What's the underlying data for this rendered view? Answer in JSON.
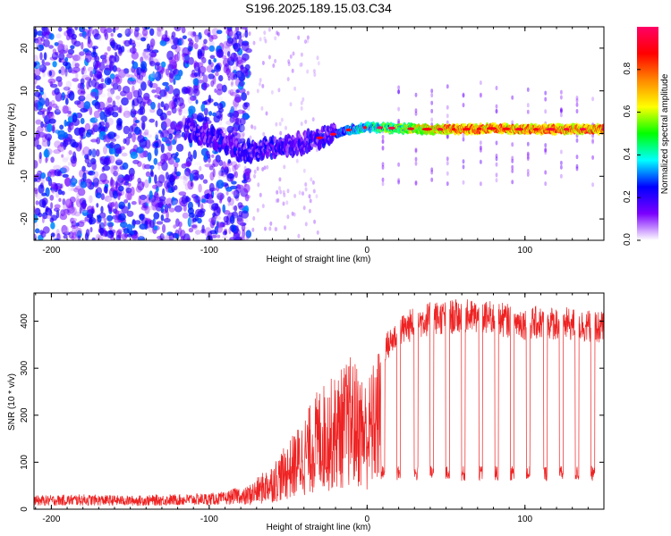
{
  "title": "S196.2025.189.15.03.C34",
  "chart_data": [
    {
      "type": "heatmap",
      "xlabel": "Height of straight line (km)",
      "ylabel": "Frequency (Hz)",
      "xlim": [
        -211,
        150
      ],
      "ylim": [
        -25,
        25
      ],
      "xticks": [
        -200,
        -100,
        0,
        100
      ],
      "yticks": [
        -20,
        -10,
        0,
        10,
        20
      ],
      "colorbar": {
        "label": "Normalized spectral amplitude",
        "range": [
          0,
          1
        ],
        "ticks": [
          "0.0",
          "0.2",
          "0.4",
          "0.6",
          "0.8"
        ],
        "tick_values": [
          0,
          0.2,
          0.4,
          0.6,
          0.8
        ],
        "colormap": [
          "#ffffff",
          "#7b00ff",
          "#0000ff",
          "#00ffff",
          "#00ff00",
          "#ffff00",
          "#ff8800",
          "#ff0000",
          "#ff0066"
        ]
      },
      "ridge": {
        "x": [
          -115,
          -100,
          -90,
          -80,
          -70,
          -60,
          -50,
          -40,
          -30,
          -20,
          -10,
          0,
          20,
          40,
          60,
          80,
          100,
          120,
          150
        ],
        "frequency": [
          1,
          -0.5,
          -2,
          -4,
          -4,
          -3.5,
          -3,
          -2,
          -1,
          0,
          1,
          1.5,
          1.2,
          1.0,
          1.0,
          1.2,
          1.0,
          1.0,
          1.0
        ]
      }
    },
    {
      "type": "line",
      "xlabel": "Height of straight line (km)",
      "ylabel": "SNR (10 * v/v)",
      "xlim": [
        -211,
        150
      ],
      "ylim": [
        0,
        460
      ],
      "xticks": [
        -200,
        -100,
        0,
        100
      ],
      "yticks": [
        0,
        100,
        200,
        300,
        400
      ],
      "color": "#ee2222",
      "envelope": {
        "x": [
          -211,
          -180,
          -150,
          -120,
          -90,
          -80,
          -70,
          -60,
          -50,
          -40,
          -30,
          -20,
          -10,
          0,
          10,
          20,
          30,
          40,
          60,
          80,
          100,
          120,
          150
        ],
        "y": [
          20,
          22,
          20,
          22,
          25,
          35,
          60,
          90,
          130,
          180,
          240,
          260,
          300,
          250,
          340,
          380,
          400,
          410,
          415,
          410,
          400,
          400,
          390
        ]
      },
      "dropouts": [
        10,
        20,
        31,
        41,
        51,
        61,
        72,
        82,
        92,
        102,
        113,
        123,
        133,
        143
      ],
      "dropout_level": 80
    }
  ]
}
